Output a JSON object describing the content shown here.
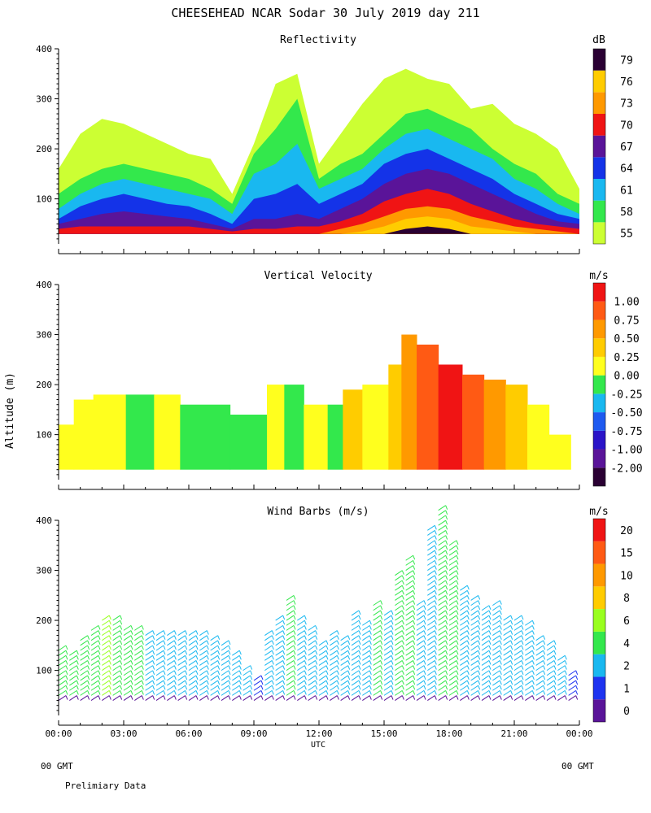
{
  "title": "CHEESEHEAD  NCAR Sodar  30 July 2019  day 211",
  "footer": {
    "left_gmt": "00 GMT",
    "right_gmt": "00 GMT",
    "note": "Prelimiary Data"
  },
  "chart_data": [
    {
      "type": "heatmap",
      "title": "Reflectivity",
      "ylabel": "",
      "xlabel": "",
      "units": "dB",
      "ylim": [
        10,
        400
      ],
      "yticks": [
        "100",
        "200",
        "300",
        "400"
      ],
      "xlim_hours": [
        0,
        24
      ],
      "levels": [
        "55",
        "58",
        "61",
        "64",
        "67",
        "70",
        "73",
        "76",
        "79"
      ],
      "colors": [
        "#ccff33",
        "#33e84c",
        "#19b8f0",
        "#1433e8",
        "#5a1499",
        "#f01414",
        "#ff9900",
        "#ffcc00",
        "#2a0033"
      ],
      "profile_hours": [
        0,
        1,
        2,
        3,
        4,
        5,
        6,
        7,
        8,
        9,
        10,
        11,
        12,
        13,
        14,
        15,
        16,
        17,
        18,
        19,
        20,
        21,
        22,
        23,
        24
      ],
      "band_tops_m": [
        [
          160,
          230,
          260,
          250,
          230,
          210,
          190,
          180,
          110,
          210,
          330,
          350,
          170,
          230,
          290,
          340,
          360,
          340,
          330,
          280,
          290,
          250,
          230,
          200,
          120
        ],
        [
          110,
          140,
          160,
          170,
          160,
          150,
          140,
          120,
          90,
          190,
          240,
          300,
          140,
          170,
          190,
          230,
          270,
          280,
          260,
          240,
          200,
          170,
          150,
          110,
          90
        ],
        [
          80,
          110,
          130,
          140,
          130,
          120,
          110,
          100,
          70,
          150,
          170,
          210,
          120,
          140,
          160,
          200,
          230,
          240,
          220,
          200,
          180,
          140,
          120,
          90,
          70
        ],
        [
          60,
          85,
          100,
          110,
          100,
          90,
          85,
          70,
          50,
          100,
          110,
          130,
          90,
          110,
          130,
          170,
          190,
          200,
          180,
          160,
          140,
          110,
          90,
          70,
          60
        ],
        [
          50,
          60,
          70,
          75,
          70,
          65,
          60,
          50,
          40,
          60,
          60,
          70,
          60,
          80,
          100,
          130,
          150,
          160,
          150,
          130,
          110,
          90,
          70,
          55,
          50
        ],
        [
          40,
          45,
          45,
          45,
          45,
          45,
          45,
          40,
          35,
          40,
          40,
          45,
          45,
          55,
          70,
          95,
          110,
          120,
          110,
          90,
          75,
          60,
          50,
          45,
          40
        ],
        [
          30,
          30,
          30,
          30,
          30,
          30,
          30,
          30,
          30,
          30,
          30,
          30,
          30,
          40,
          50,
          65,
          80,
          85,
          80,
          65,
          55,
          45,
          40,
          35,
          30
        ],
        [
          30,
          30,
          30,
          30,
          30,
          30,
          30,
          30,
          30,
          30,
          30,
          30,
          30,
          30,
          35,
          45,
          60,
          65,
          60,
          45,
          40,
          35,
          30,
          30,
          30
        ],
        [
          30,
          30,
          30,
          30,
          30,
          30,
          30,
          30,
          30,
          30,
          30,
          30,
          30,
          30,
          30,
          30,
          40,
          45,
          40,
          30,
          30,
          30,
          30,
          30,
          30
        ]
      ]
    },
    {
      "type": "heatmap",
      "title": "Vertical Velocity",
      "ylabel": "Altitude (m)",
      "xlabel": "",
      "units": "m/s",
      "ylim": [
        10,
        400
      ],
      "yticks": [
        "100",
        "200",
        "300",
        "400"
      ],
      "xlim_hours": [
        0,
        24
      ],
      "levels": [
        "-2.00",
        "-1.00",
        "-0.75",
        "-0.50",
        "-0.25",
        "0.00",
        "0.25",
        "0.50",
        "0.75",
        "1.00"
      ],
      "colors": [
        "#2a0033",
        "#5a1499",
        "#2a14c8",
        "#1e5af0",
        "#19b8f0",
        "#33e84c",
        "#ffff1e",
        "#ffcc00",
        "#ff9900",
        "#ff5a14",
        "#f01414"
      ],
      "segments": [
        {
          "start_h": 0.0,
          "end_h": 0.7,
          "top_m": 120,
          "value": "0.00"
        },
        {
          "start_h": 0.7,
          "end_h": 1.6,
          "top_m": 170,
          "value": "0.00"
        },
        {
          "start_h": 1.6,
          "end_h": 3.1,
          "top_m": 180,
          "value": "0.00"
        },
        {
          "start_h": 3.1,
          "end_h": 4.4,
          "top_m": 180,
          "value": "-0.25"
        },
        {
          "start_h": 4.4,
          "end_h": 5.6,
          "top_m": 180,
          "value": "0.00"
        },
        {
          "start_h": 5.6,
          "end_h": 7.9,
          "top_m": 160,
          "value": "-0.25"
        },
        {
          "start_h": 7.9,
          "end_h": 9.6,
          "top_m": 140,
          "value": "-0.25"
        },
        {
          "start_h": 9.6,
          "end_h": 10.4,
          "top_m": 200,
          "value": "0.00"
        },
        {
          "start_h": 10.4,
          "end_h": 11.3,
          "top_m": 200,
          "value": "-0.25"
        },
        {
          "start_h": 11.3,
          "end_h": 12.4,
          "top_m": 160,
          "value": "0.00"
        },
        {
          "start_h": 12.4,
          "end_h": 13.1,
          "top_m": 160,
          "value": "-0.25"
        },
        {
          "start_h": 13.1,
          "end_h": 14.0,
          "top_m": 190,
          "value": "0.25"
        },
        {
          "start_h": 14.0,
          "end_h": 15.2,
          "top_m": 200,
          "value": "0.00"
        },
        {
          "start_h": 15.2,
          "end_h": 15.8,
          "top_m": 240,
          "value": "0.25"
        },
        {
          "start_h": 15.8,
          "end_h": 16.5,
          "top_m": 300,
          "value": "0.50"
        },
        {
          "start_h": 16.5,
          "end_h": 17.5,
          "top_m": 280,
          "value": "0.75"
        },
        {
          "start_h": 17.5,
          "end_h": 18.6,
          "top_m": 240,
          "value": "1.00"
        },
        {
          "start_h": 18.6,
          "end_h": 19.6,
          "top_m": 220,
          "value": "0.75"
        },
        {
          "start_h": 19.6,
          "end_h": 20.6,
          "top_m": 210,
          "value": "0.50"
        },
        {
          "start_h": 20.6,
          "end_h": 21.6,
          "top_m": 200,
          "value": "0.25"
        },
        {
          "start_h": 21.6,
          "end_h": 22.6,
          "top_m": 160,
          "value": "0.00"
        },
        {
          "start_h": 22.6,
          "end_h": 23.6,
          "top_m": 100,
          "value": "0.00"
        }
      ]
    },
    {
      "type": "scatter",
      "title": "Wind Barbs (m/s)",
      "ylabel": "",
      "xlabel": "UTC",
      "units": "m/s",
      "ylim": [
        10,
        400
      ],
      "yticks": [
        "100",
        "200",
        "300",
        "400"
      ],
      "xticks": [
        "00:00",
        "03:00",
        "06:00",
        "09:00",
        "12:00",
        "15:00",
        "18:00",
        "21:00",
        "00:00"
      ],
      "levels": [
        "0",
        "1",
        "2",
        "4",
        "6",
        "8",
        "10",
        "15",
        "20"
      ],
      "colors": [
        "#5a1499",
        "#1e33f0",
        "#19b8f0",
        "#33e84c",
        "#99ff1e",
        "#ffcc00",
        "#ff9900",
        "#ff5a14",
        "#f01414"
      ],
      "columns": [
        {
          "hour": 0.0,
          "top_m": 140,
          "speed": "4"
        },
        {
          "hour": 0.5,
          "top_m": 130,
          "speed": "4"
        },
        {
          "hour": 1.0,
          "top_m": 160,
          "speed": "4"
        },
        {
          "hour": 1.5,
          "top_m": 180,
          "speed": "4"
        },
        {
          "hour": 2.0,
          "top_m": 200,
          "speed": "6"
        },
        {
          "hour": 2.5,
          "top_m": 200,
          "speed": "4"
        },
        {
          "hour": 3.0,
          "top_m": 180,
          "speed": "4"
        },
        {
          "hour": 3.5,
          "top_m": 180,
          "speed": "4"
        },
        {
          "hour": 4.0,
          "top_m": 170,
          "speed": "2"
        },
        {
          "hour": 4.5,
          "top_m": 170,
          "speed": "2"
        },
        {
          "hour": 5.0,
          "top_m": 170,
          "speed": "2"
        },
        {
          "hour": 5.5,
          "top_m": 170,
          "speed": "2"
        },
        {
          "hour": 6.0,
          "top_m": 170,
          "speed": "2"
        },
        {
          "hour": 6.5,
          "top_m": 170,
          "speed": "2"
        },
        {
          "hour": 7.0,
          "top_m": 160,
          "speed": "2"
        },
        {
          "hour": 7.5,
          "top_m": 150,
          "speed": "2"
        },
        {
          "hour": 8.0,
          "top_m": 130,
          "speed": "2"
        },
        {
          "hour": 8.5,
          "top_m": 100,
          "speed": "2"
        },
        {
          "hour": 9.0,
          "top_m": 80,
          "speed": "1"
        },
        {
          "hour": 9.5,
          "top_m": 170,
          "speed": "2"
        },
        {
          "hour": 10.0,
          "top_m": 200,
          "speed": "2"
        },
        {
          "hour": 10.5,
          "top_m": 240,
          "speed": "4"
        },
        {
          "hour": 11.0,
          "top_m": 200,
          "speed": "2"
        },
        {
          "hour": 11.5,
          "top_m": 180,
          "speed": "2"
        },
        {
          "hour": 12.0,
          "top_m": 150,
          "speed": "2"
        },
        {
          "hour": 12.5,
          "top_m": 170,
          "speed": "2"
        },
        {
          "hour": 13.0,
          "top_m": 160,
          "speed": "2"
        },
        {
          "hour": 13.5,
          "top_m": 210,
          "speed": "2"
        },
        {
          "hour": 14.0,
          "top_m": 190,
          "speed": "2"
        },
        {
          "hour": 14.5,
          "top_m": 230,
          "speed": "4"
        },
        {
          "hour": 15.0,
          "top_m": 210,
          "speed": "2"
        },
        {
          "hour": 15.5,
          "top_m": 290,
          "speed": "4"
        },
        {
          "hour": 16.0,
          "top_m": 320,
          "speed": "4"
        },
        {
          "hour": 16.5,
          "top_m": 230,
          "speed": "2"
        },
        {
          "hour": 17.0,
          "top_m": 380,
          "speed": "2"
        },
        {
          "hour": 17.5,
          "top_m": 420,
          "speed": "4"
        },
        {
          "hour": 18.0,
          "top_m": 350,
          "speed": "4"
        },
        {
          "hour": 18.5,
          "top_m": 260,
          "speed": "2"
        },
        {
          "hour": 19.0,
          "top_m": 240,
          "speed": "2"
        },
        {
          "hour": 19.5,
          "top_m": 220,
          "speed": "2"
        },
        {
          "hour": 20.0,
          "top_m": 230,
          "speed": "2"
        },
        {
          "hour": 20.5,
          "top_m": 200,
          "speed": "2"
        },
        {
          "hour": 21.0,
          "top_m": 200,
          "speed": "2"
        },
        {
          "hour": 21.5,
          "top_m": 190,
          "speed": "2"
        },
        {
          "hour": 22.0,
          "top_m": 160,
          "speed": "2"
        },
        {
          "hour": 22.5,
          "top_m": 150,
          "speed": "2"
        },
        {
          "hour": 23.0,
          "top_m": 120,
          "speed": "2"
        },
        {
          "hour": 23.5,
          "top_m": 90,
          "speed": "1"
        }
      ]
    }
  ]
}
